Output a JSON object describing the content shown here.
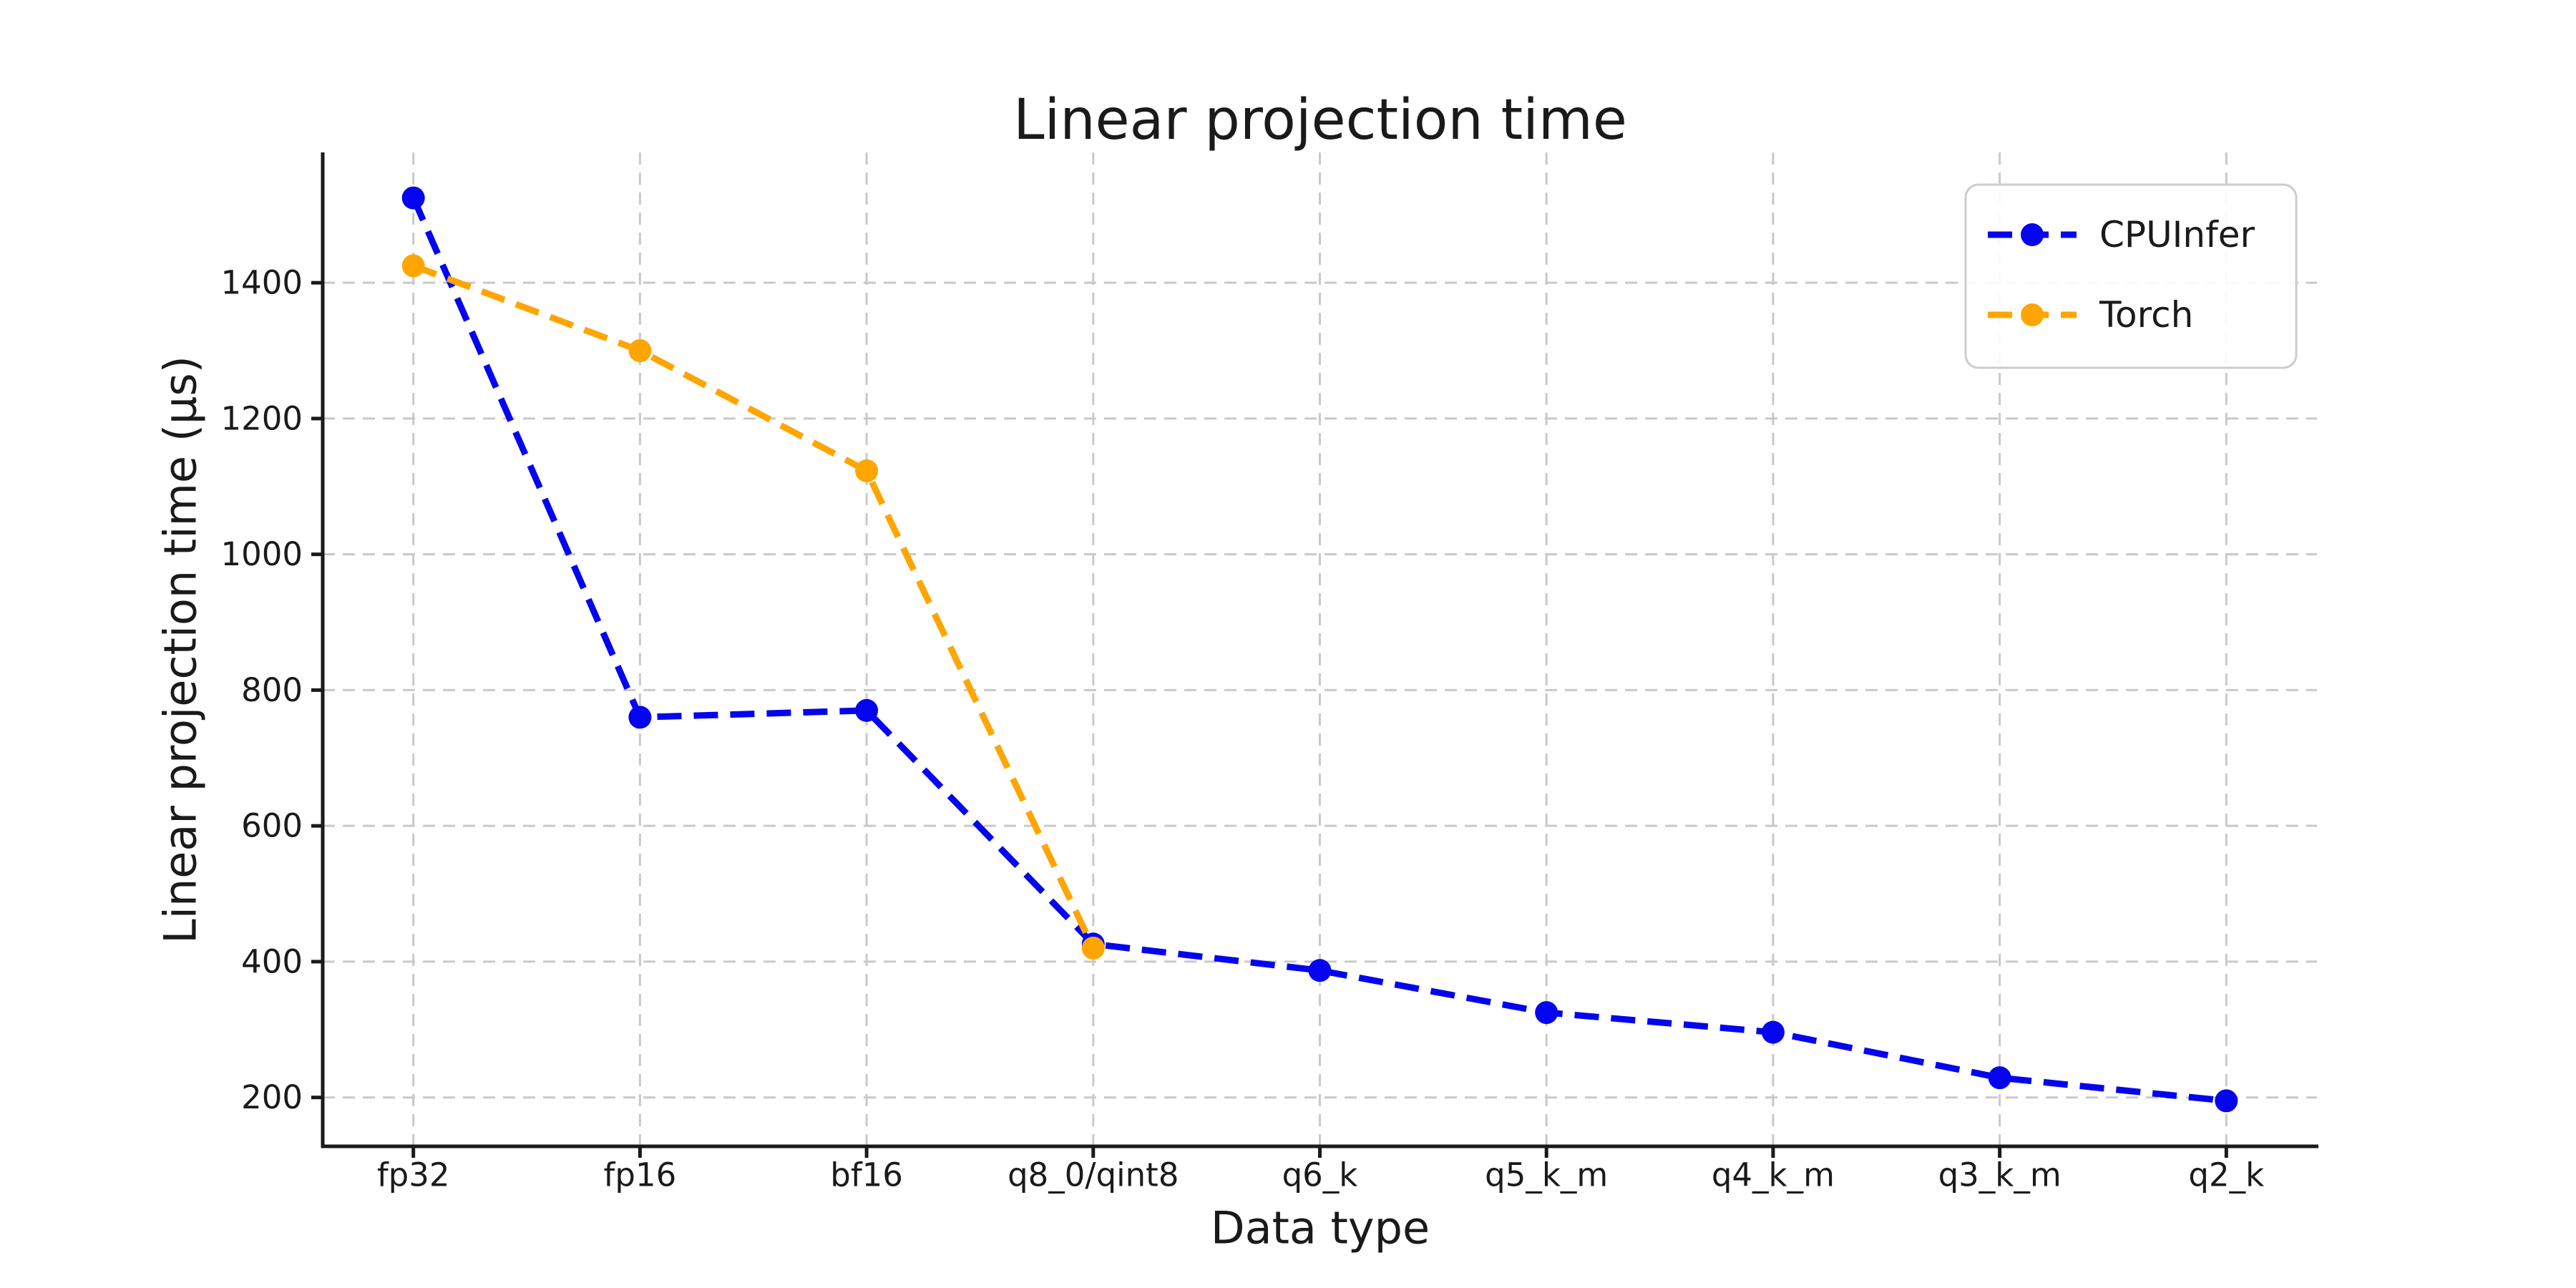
{
  "chart_data": {
    "type": "line",
    "title": "Linear projection time",
    "xlabel": "Data type",
    "ylabel": "Linear projection time (μs)",
    "categories": [
      "fp32",
      "fp16",
      "bf16",
      "q8_0/qint8",
      "q6_k",
      "q5_k_m",
      "q4_k_m",
      "q3_k_m",
      "q2_k"
    ],
    "yticks": [
      200,
      400,
      600,
      800,
      1000,
      1200,
      1400
    ],
    "ylim": [
      128,
      1592
    ],
    "xlim_index": [
      -0.4,
      8.4
    ],
    "grid": "dashed",
    "legend_position": "upper right",
    "line_style": "dashed",
    "marker": "circle",
    "series": [
      {
        "name": "CPUInfer",
        "color": "#0504f0",
        "values": [
          1525,
          760,
          770,
          426,
          387,
          325,
          296,
          229,
          195
        ]
      },
      {
        "name": "Torch",
        "color": "#ffa500",
        "values": [
          1425,
          1300,
          1123,
          420
        ]
      }
    ]
  },
  "colors": {
    "background": "#ffffff",
    "grid": "#c9c9c9",
    "axis": "#1a1a1a",
    "text": "#1a1a1a",
    "legend_border": "#cccccc"
  }
}
